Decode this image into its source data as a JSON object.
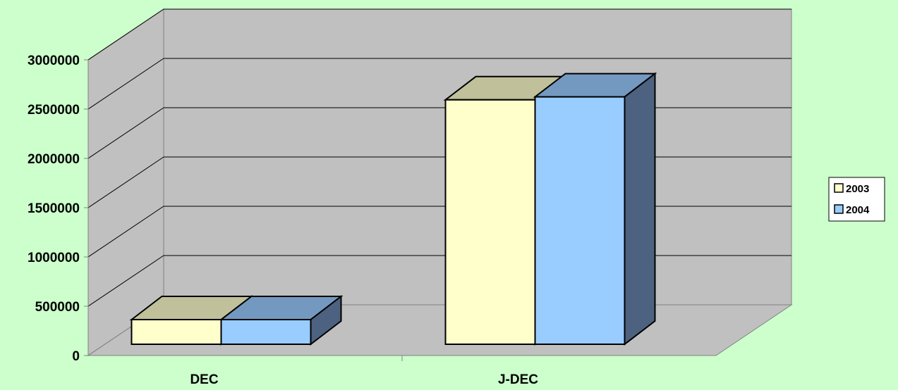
{
  "chart_data": {
    "type": "bar",
    "categories": [
      "DEC",
      "J-DEC"
    ],
    "series": [
      {
        "name": "2003",
        "values": [
          250000,
          2480000
        ]
      },
      {
        "name": "2004",
        "values": [
          250000,
          2510000
        ]
      }
    ],
    "y_ticks": [
      "0",
      "500000",
      "1000000",
      "1500000",
      "2000000",
      "2500000",
      "3000000"
    ],
    "ylim": [
      0,
      3000000
    ],
    "grid": true,
    "legend_position": "right",
    "colors": {
      "background": "#ccffcc",
      "plot_wall": "#c0c0c0",
      "series_front": [
        "#ffffcc",
        "#99ccff"
      ],
      "series_top": [
        "#c0c09a",
        "#7399c0"
      ],
      "series_side": [
        "#8a8a6e",
        "#4d6280"
      ]
    }
  }
}
